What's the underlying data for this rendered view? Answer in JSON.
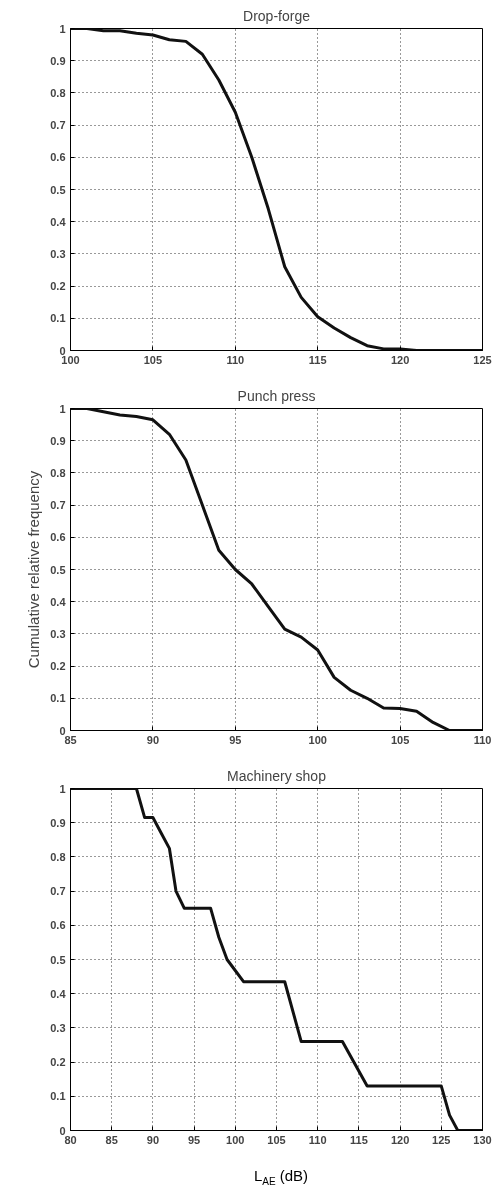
{
  "chart_data": [
    {
      "type": "line",
      "title": "Drop-forge",
      "x": [
        100,
        101,
        102,
        103,
        104,
        105,
        106,
        107,
        108,
        109,
        110,
        111,
        112,
        113,
        114,
        115,
        116,
        117,
        118,
        119,
        120,
        121,
        122,
        123,
        124,
        125
      ],
      "series": [
        {
          "color": "#111111",
          "values": [
            1,
            1,
            0.993,
            0.993,
            0.985,
            0.98,
            0.965,
            0.96,
            0.92,
            0.84,
            0.74,
            0.6,
            0.44,
            0.26,
            0.165,
            0.105,
            0.07,
            0.04,
            0.015,
            0.005,
            0.005,
            0,
            0,
            0,
            0,
            0
          ]
        }
      ],
      "xlim": [
        100,
        125
      ],
      "xticks": [
        100,
        105,
        110,
        115,
        120,
        125
      ],
      "ylim": [
        0,
        1
      ],
      "yticks": [
        0,
        0.1,
        0.2,
        0.3,
        0.4,
        0.5,
        0.6,
        0.7,
        0.8,
        0.9,
        1
      ],
      "grid": true,
      "line_style": "solid"
    },
    {
      "type": "line",
      "title": "Punch press",
      "ylabel": "Cumulative relative frequency",
      "x": [
        85,
        86,
        87,
        88,
        89,
        90,
        91,
        92,
        93,
        94,
        95,
        96,
        97,
        98,
        99,
        100,
        101,
        102,
        103,
        104,
        105,
        106,
        107,
        108,
        109,
        110
      ],
      "series": [
        {
          "color": "#111111",
          "values": [
            1,
            1,
            0.99,
            0.98,
            0.975,
            0.965,
            0.92,
            0.84,
            0.7,
            0.56,
            0.5,
            0.455,
            0.385,
            0.315,
            0.29,
            0.25,
            0.165,
            0.125,
            0.1,
            0.07,
            0.068,
            0.06,
            0.025,
            0,
            0,
            0
          ]
        }
      ],
      "xlim": [
        85,
        110
      ],
      "xticks": [
        85,
        90,
        95,
        100,
        105,
        110
      ],
      "ylim": [
        0,
        1
      ],
      "yticks": [
        0,
        0.1,
        0.2,
        0.3,
        0.4,
        0.5,
        0.6,
        0.7,
        0.8,
        0.9,
        1
      ],
      "grid": true,
      "line_style": "solid"
    },
    {
      "type": "line",
      "title": "Machinery shop",
      "xlabel": "L$_{AE}$ (dB)",
      "x": [
        80,
        88,
        89,
        90,
        91,
        92,
        92.8,
        93.8,
        97,
        98,
        99,
        101,
        106,
        108,
        113,
        116,
        125,
        126,
        127,
        130
      ],
      "series": [
        {
          "color": "#111111",
          "values": [
            1,
            1,
            0.915,
            0.915,
            0.87,
            0.825,
            0.7,
            0.65,
            0.65,
            0.565,
            0.5,
            0.435,
            0.435,
            0.26,
            0.26,
            0.13,
            0.13,
            0.045,
            0,
            0
          ]
        }
      ],
      "xlim": [
        80,
        130
      ],
      "xticks": [
        80,
        85,
        90,
        95,
        100,
        105,
        110,
        115,
        120,
        125,
        130
      ],
      "ylim": [
        0,
        1
      ],
      "yticks": [
        0,
        0.1,
        0.2,
        0.3,
        0.4,
        0.5,
        0.6,
        0.7,
        0.8,
        0.9,
        1
      ],
      "grid": true,
      "line_style": "solid"
    }
  ]
}
